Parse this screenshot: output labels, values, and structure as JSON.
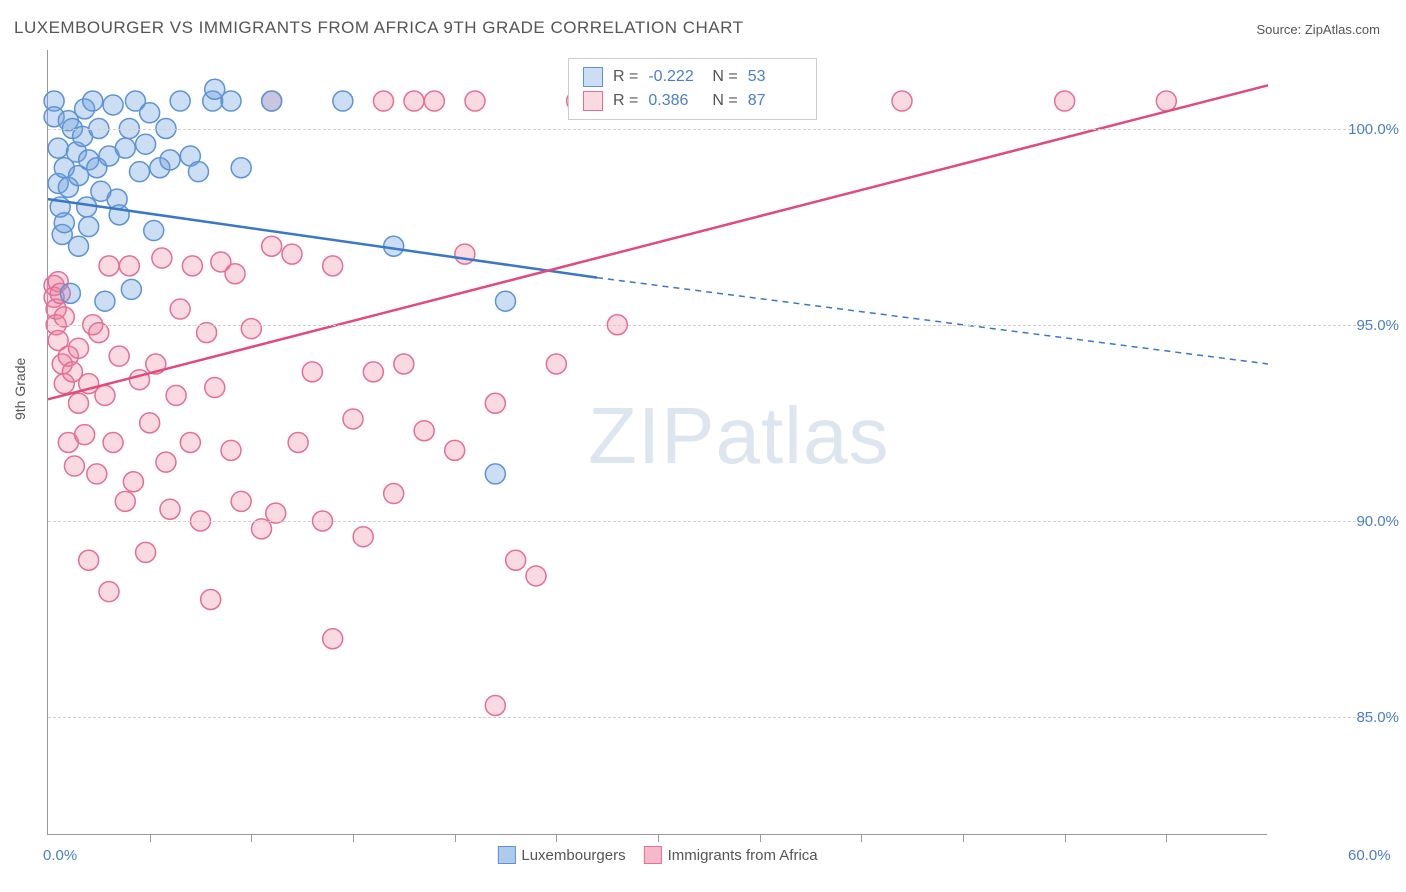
{
  "title": "LUXEMBOURGER VS IMMIGRANTS FROM AFRICA 9TH GRADE CORRELATION CHART",
  "source_label": "Source: ",
  "source_value": "ZipAtlas.com",
  "watermark_a": "ZIP",
  "watermark_b": "atlas",
  "y_axis_label": "9th Grade",
  "chart": {
    "type": "scatter-correlation",
    "xlim": [
      0,
      60
    ],
    "ylim": [
      82,
      102
    ],
    "x_ticks_major": [
      0,
      60
    ],
    "x_ticks_minor": [
      5,
      10,
      15,
      20,
      25,
      30,
      35,
      40,
      45,
      50,
      55
    ],
    "y_ticks": [
      85,
      90,
      95,
      100
    ],
    "x_tick_labels": {
      "0": "0.0%",
      "60": "60.0%"
    },
    "y_tick_labels": {
      "85": "85.0%",
      "90": "90.0%",
      "95": "95.0%",
      "100": "100.0%"
    },
    "background_color": "#ffffff",
    "grid_color": "#d0d0d0",
    "axis_color": "#999999",
    "tick_label_color": "#4a7ec8",
    "marker_radius": 10,
    "marker_stroke_width": 1.5,
    "line_width": 2.5,
    "series": [
      {
        "name": "Luxembourgers",
        "fill": "rgba(110,160,220,0.35)",
        "stroke": "#5c93d6",
        "line_color": "#3a77c8",
        "R": "-0.222",
        "N": "53",
        "trend": {
          "x1": 0,
          "y1": 98.2,
          "x2": 27,
          "y2": 96.2,
          "solid_until_x": 27,
          "x_end": 60,
          "y_end": 94.0
        },
        "points": [
          [
            0.3,
            100.7
          ],
          [
            0.3,
            100.3
          ],
          [
            0.5,
            99.5
          ],
          [
            0.5,
            98.6
          ],
          [
            0.6,
            98.0
          ],
          [
            0.7,
            97.3
          ],
          [
            0.8,
            99.0
          ],
          [
            0.8,
            97.6
          ],
          [
            1.0,
            100.2
          ],
          [
            1.0,
            98.5
          ],
          [
            1.1,
            95.8
          ],
          [
            1.2,
            100.0
          ],
          [
            1.4,
            99.4
          ],
          [
            1.5,
            98.8
          ],
          [
            1.5,
            97.0
          ],
          [
            1.7,
            99.8
          ],
          [
            1.8,
            100.5
          ],
          [
            1.9,
            98.0
          ],
          [
            2.0,
            99.2
          ],
          [
            2.0,
            97.5
          ],
          [
            2.2,
            100.7
          ],
          [
            2.4,
            99.0
          ],
          [
            2.5,
            100.0
          ],
          [
            2.6,
            98.4
          ],
          [
            2.8,
            95.6
          ],
          [
            3.0,
            99.3
          ],
          [
            3.2,
            100.6
          ],
          [
            3.4,
            98.2
          ],
          [
            3.5,
            97.8
          ],
          [
            3.8,
            99.5
          ],
          [
            4.0,
            100.0
          ],
          [
            4.1,
            95.9
          ],
          [
            4.3,
            100.7
          ],
          [
            4.5,
            98.9
          ],
          [
            4.8,
            99.6
          ],
          [
            5.0,
            100.4
          ],
          [
            5.2,
            97.4
          ],
          [
            5.5,
            99.0
          ],
          [
            5.8,
            100.0
          ],
          [
            6.0,
            99.2
          ],
          [
            6.5,
            100.7
          ],
          [
            7.0,
            99.3
          ],
          [
            7.4,
            98.9
          ],
          [
            8.1,
            100.7
          ],
          [
            8.2,
            101.0
          ],
          [
            9.0,
            100.7
          ],
          [
            9.5,
            99.0
          ],
          [
            11.0,
            100.7
          ],
          [
            14.5,
            100.7
          ],
          [
            17.0,
            97.0
          ],
          [
            22.0,
            91.2
          ],
          [
            22.5,
            95.6
          ],
          [
            26.5,
            100.7
          ]
        ]
      },
      {
        "name": "Immigrants from Africa",
        "fill": "rgba(235,130,160,0.30)",
        "stroke": "#e56f94",
        "line_color": "#e14a7a",
        "R": "0.386",
        "N": "87",
        "trend": {
          "x1": 0,
          "y1": 93.1,
          "x2": 60,
          "y2": 101.1,
          "solid_until_x": 60
        },
        "points": [
          [
            0.3,
            96.0
          ],
          [
            0.3,
            95.7
          ],
          [
            0.4,
            95.4
          ],
          [
            0.4,
            95.0
          ],
          [
            0.5,
            96.1
          ],
          [
            0.5,
            94.6
          ],
          [
            0.6,
            95.8
          ],
          [
            0.7,
            94.0
          ],
          [
            0.8,
            95.2
          ],
          [
            0.8,
            93.5
          ],
          [
            1.0,
            94.2
          ],
          [
            1.0,
            92.0
          ],
          [
            1.2,
            93.8
          ],
          [
            1.3,
            91.4
          ],
          [
            1.5,
            93.0
          ],
          [
            1.5,
            94.4
          ],
          [
            1.8,
            92.2
          ],
          [
            2.0,
            89.0
          ],
          [
            2.0,
            93.5
          ],
          [
            2.2,
            95.0
          ],
          [
            2.4,
            91.2
          ],
          [
            2.5,
            94.8
          ],
          [
            2.8,
            93.2
          ],
          [
            3.0,
            88.2
          ],
          [
            3.0,
            96.5
          ],
          [
            3.2,
            92.0
          ],
          [
            3.5,
            94.2
          ],
          [
            3.8,
            90.5
          ],
          [
            4.0,
            96.5
          ],
          [
            4.2,
            91.0
          ],
          [
            4.5,
            93.6
          ],
          [
            4.8,
            89.2
          ],
          [
            5.0,
            92.5
          ],
          [
            5.3,
            94.0
          ],
          [
            5.6,
            96.7
          ],
          [
            5.8,
            91.5
          ],
          [
            6.0,
            90.3
          ],
          [
            6.3,
            93.2
          ],
          [
            6.5,
            95.4
          ],
          [
            7.0,
            92.0
          ],
          [
            7.1,
            96.5
          ],
          [
            7.5,
            90.0
          ],
          [
            7.8,
            94.8
          ],
          [
            8.0,
            88.0
          ],
          [
            8.2,
            93.4
          ],
          [
            8.5,
            96.6
          ],
          [
            9.0,
            91.8
          ],
          [
            9.2,
            96.3
          ],
          [
            9.5,
            90.5
          ],
          [
            10.0,
            94.9
          ],
          [
            10.5,
            89.8
          ],
          [
            11.0,
            100.7
          ],
          [
            11.0,
            97.0
          ],
          [
            11.2,
            90.2
          ],
          [
            12.0,
            96.8
          ],
          [
            12.3,
            92.0
          ],
          [
            13.0,
            93.8
          ],
          [
            13.5,
            90.0
          ],
          [
            14.0,
            87.0
          ],
          [
            14.0,
            96.5
          ],
          [
            15.0,
            92.6
          ],
          [
            15.5,
            89.6
          ],
          [
            16.0,
            93.8
          ],
          [
            16.5,
            100.7
          ],
          [
            17.0,
            90.7
          ],
          [
            17.5,
            94.0
          ],
          [
            18.0,
            100.7
          ],
          [
            18.5,
            92.3
          ],
          [
            19.0,
            100.7
          ],
          [
            20.0,
            91.8
          ],
          [
            20.5,
            96.8
          ],
          [
            21.0,
            100.7
          ],
          [
            22.0,
            85.3
          ],
          [
            22.0,
            93.0
          ],
          [
            23.0,
            89.0
          ],
          [
            24.0,
            88.6
          ],
          [
            25.0,
            94.0
          ],
          [
            26.0,
            100.7
          ],
          [
            28.0,
            95.0
          ],
          [
            29.0,
            100.7
          ],
          [
            30.5,
            100.7
          ],
          [
            32.0,
            100.7
          ],
          [
            33.0,
            100.7
          ],
          [
            36.0,
            100.7
          ],
          [
            42.0,
            100.7
          ],
          [
            50.0,
            100.7
          ],
          [
            55.0,
            100.7
          ]
        ]
      }
    ],
    "legend": [
      {
        "label": "Luxembourgers",
        "fill": "rgba(110,160,220,0.55)",
        "stroke": "#5c93d6"
      },
      {
        "label": "Immigrants from Africa",
        "fill": "rgba(235,130,160,0.55)",
        "stroke": "#e56f94"
      }
    ],
    "stats_labels": {
      "r": "R =",
      "n": "N ="
    }
  }
}
